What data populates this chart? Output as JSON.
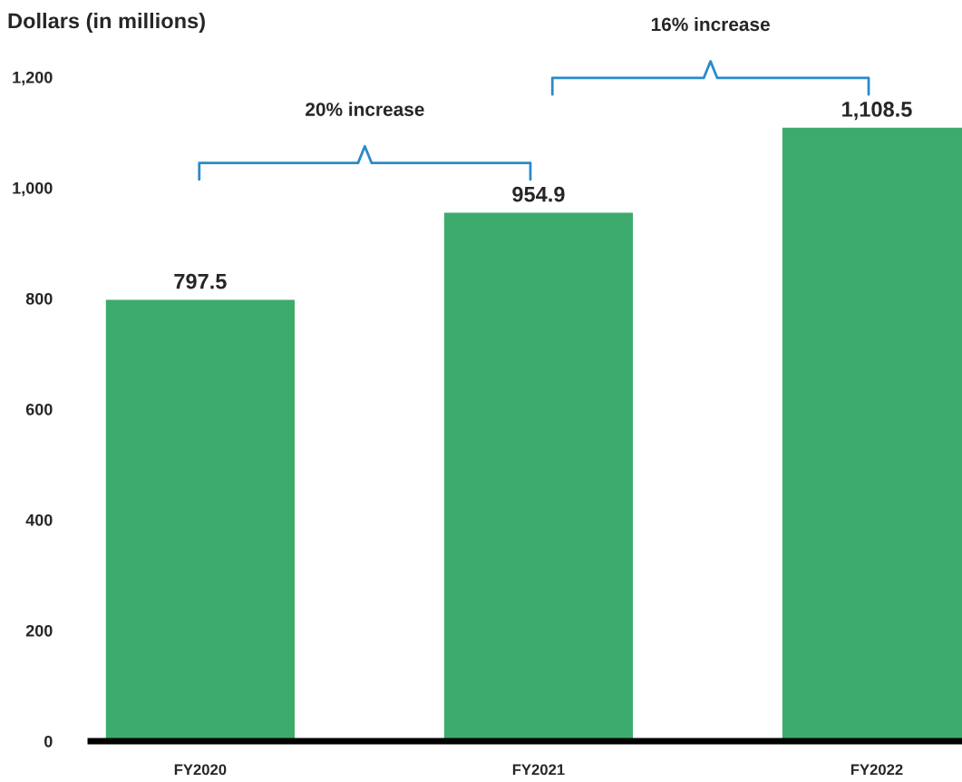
{
  "chart_data": {
    "type": "bar",
    "title": "Dollars (in millions)",
    "categories": [
      "FY2020",
      "FY2021",
      "FY2022"
    ],
    "values": [
      797.5,
      954.9,
      1108.5
    ],
    "value_labels": [
      "797.5",
      "954.9",
      "1,108.5"
    ],
    "color": "#3dab6c",
    "ylim": [
      0,
      1200
    ],
    "yticks": [
      0,
      200,
      400,
      600,
      800,
      {
        "value": 1000,
        "label": "1,000"
      },
      {
        "value": 1200,
        "label": "1,200"
      }
    ],
    "annotations": [
      "20% increase",
      "16% increase"
    ],
    "grid": false,
    "legend": false
  }
}
